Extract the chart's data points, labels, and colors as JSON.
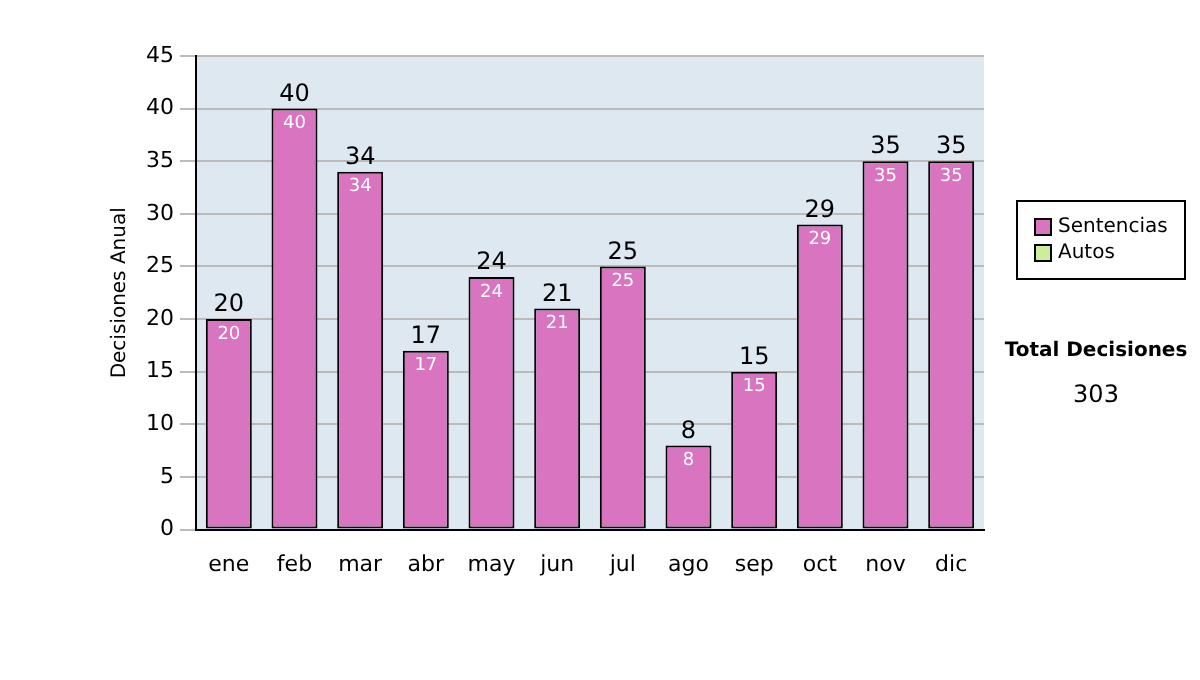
{
  "chart_data": {
    "type": "bar",
    "stacked": true,
    "ylabel": "Decisiones Anual",
    "categories": [
      "ene",
      "feb",
      "mar",
      "abr",
      "may",
      "jun",
      "jul",
      "ago",
      "sep",
      "oct",
      "nov",
      "dic"
    ],
    "series": [
      {
        "name": "Sentencias",
        "color": "#d874c0",
        "values": [
          20,
          40,
          34,
          17,
          24,
          21,
          25,
          8,
          15,
          29,
          35,
          35
        ],
        "value_labels": [
          "20",
          "40",
          "34",
          "17",
          "24",
          "21",
          "25",
          "8",
          "15",
          "29",
          "35",
          "35"
        ]
      },
      {
        "name": "Autos",
        "color": "#ccee99",
        "values": [
          0,
          0,
          0,
          0,
          0,
          0,
          0,
          0,
          0,
          0,
          0,
          0
        ]
      }
    ],
    "totals": [
      "20",
      "40",
      "34",
      "17",
      "24",
      "21",
      "25",
      "8",
      "15",
      "29",
      "35",
      "35"
    ],
    "ylim": [
      0,
      45
    ],
    "yticks": [
      0,
      5,
      10,
      15,
      20,
      25,
      30,
      35,
      40,
      45
    ],
    "grid": "y",
    "legend": "right",
    "annotations": [
      "Total Decisiones",
      "303"
    ]
  }
}
